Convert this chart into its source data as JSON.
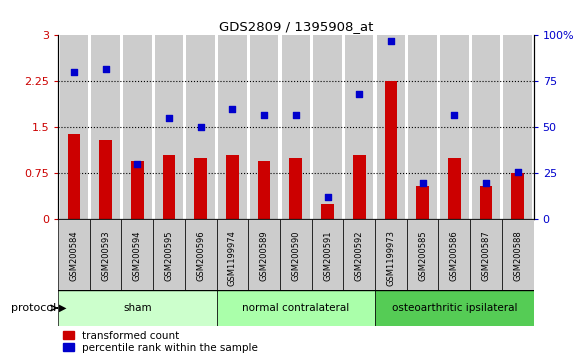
{
  "title": "GDS2809 / 1395908_at",
  "samples": [
    "GSM200584",
    "GSM200593",
    "GSM200594",
    "GSM200595",
    "GSM200596",
    "GSM1199974",
    "GSM200589",
    "GSM200590",
    "GSM200591",
    "GSM200592",
    "GSM1199973",
    "GSM200585",
    "GSM200586",
    "GSM200587",
    "GSM200588"
  ],
  "red_values": [
    1.4,
    1.3,
    0.95,
    1.05,
    1.0,
    1.05,
    0.95,
    1.0,
    0.25,
    1.05,
    2.25,
    0.55,
    1.0,
    0.55,
    0.75
  ],
  "blue_values": [
    80,
    82,
    30,
    55,
    50,
    60,
    57,
    57,
    12,
    68,
    97,
    20,
    57,
    20,
    26
  ],
  "groups": [
    {
      "label": "sham",
      "start": 0,
      "end": 5,
      "color": "#ccffcc"
    },
    {
      "label": "normal contralateral",
      "start": 5,
      "end": 10,
      "color": "#aaffaa"
    },
    {
      "label": "osteoarthritic ipsilateral",
      "start": 10,
      "end": 15,
      "color": "#55cc55"
    }
  ],
  "ylim_left": [
    0,
    3
  ],
  "ylim_right": [
    0,
    100
  ],
  "yticks_left": [
    0,
    0.75,
    1.5,
    2.25,
    3
  ],
  "yticks_right": [
    0,
    25,
    50,
    75,
    100
  ],
  "ytick_labels_left": [
    "0",
    "0.75",
    "1.5",
    "2.25",
    "3"
  ],
  "ytick_labels_right": [
    "0",
    "25",
    "50",
    "75",
    "100%"
  ],
  "red_color": "#cc0000",
  "blue_color": "#0000cc",
  "bar_bg_color": "#cccccc",
  "legend_red": "transformed count",
  "legend_blue": "percentile rank within the sample",
  "protocol_label": "protocol",
  "dotted_yticks": [
    0.75,
    1.5,
    2.25
  ]
}
